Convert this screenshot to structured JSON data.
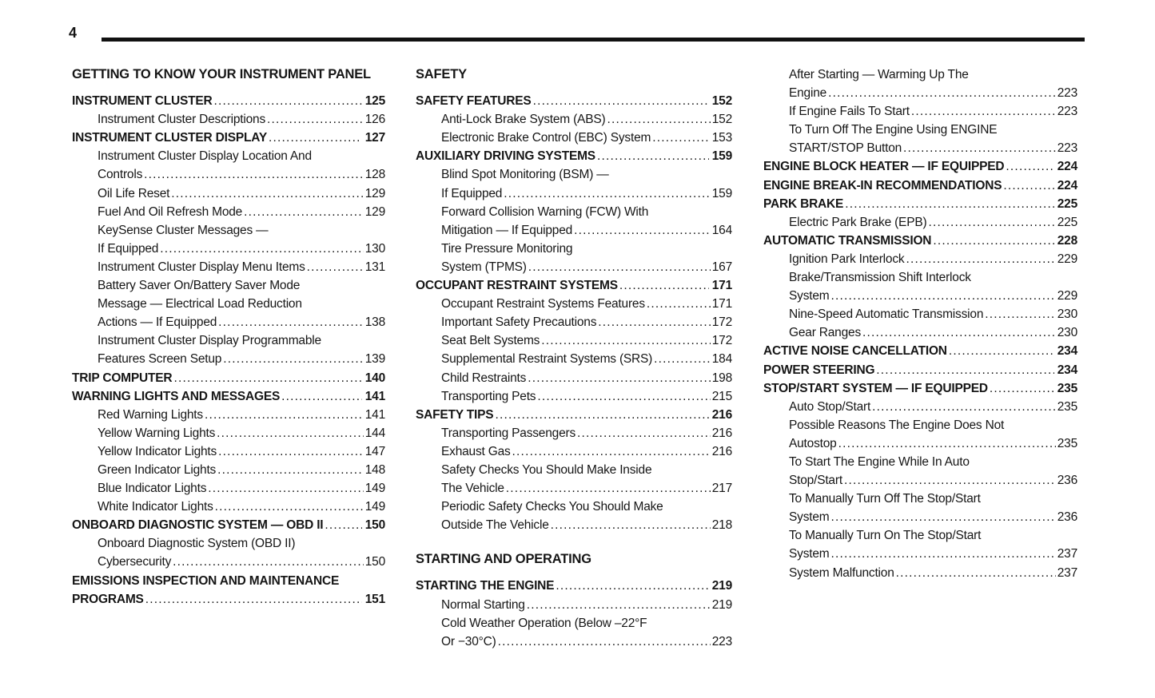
{
  "page": {
    "number": "4",
    "background": "#ffffff",
    "text_color": "#161616",
    "rule_color": "#111111"
  },
  "columns": [
    {
      "blocks": [
        {
          "type": "section",
          "text": "GETTING TO KNOW YOUR INSTRUMENT PANEL"
        },
        {
          "type": "entry",
          "level": 1,
          "lines": [
            "INSTRUMENT CLUSTER"
          ],
          "page": "125"
        },
        {
          "type": "entry",
          "level": 2,
          "lines": [
            "Instrument Cluster Descriptions"
          ],
          "page": "126"
        },
        {
          "type": "entry",
          "level": 1,
          "lines": [
            "INSTRUMENT CLUSTER DISPLAY"
          ],
          "page": "127"
        },
        {
          "type": "entry",
          "level": 2,
          "lines": [
            "Instrument Cluster Display Location And",
            "Controls"
          ],
          "page": "128"
        },
        {
          "type": "entry",
          "level": 2,
          "lines": [
            "Oil Life Reset"
          ],
          "page": "129"
        },
        {
          "type": "entry",
          "level": 2,
          "lines": [
            "Fuel And Oil Refresh Mode"
          ],
          "page": "129"
        },
        {
          "type": "entry",
          "level": 2,
          "lines": [
            "KeySense Cluster Messages —",
            "If Equipped"
          ],
          "page": "130"
        },
        {
          "type": "entry",
          "level": 2,
          "lines": [
            "Instrument Cluster Display Menu Items"
          ],
          "page": "131"
        },
        {
          "type": "entry",
          "level": 2,
          "lines": [
            "Battery Saver On/Battery Saver Mode",
            "Message — Electrical Load Reduction",
            "Actions — If Equipped"
          ],
          "page": "138"
        },
        {
          "type": "entry",
          "level": 2,
          "lines": [
            "Instrument Cluster Display Programmable",
            "Features Screen Setup"
          ],
          "page": "139"
        },
        {
          "type": "entry",
          "level": 1,
          "lines": [
            "TRIP COMPUTER"
          ],
          "page": "140"
        },
        {
          "type": "entry",
          "level": 1,
          "lines": [
            "WARNING LIGHTS AND MESSAGES"
          ],
          "page": "141"
        },
        {
          "type": "entry",
          "level": 2,
          "lines": [
            "Red Warning Lights"
          ],
          "page": "141"
        },
        {
          "type": "entry",
          "level": 2,
          "lines": [
            "Yellow Warning Lights"
          ],
          "page": "144"
        },
        {
          "type": "entry",
          "level": 2,
          "lines": [
            "Yellow Indicator Lights"
          ],
          "page": "147"
        },
        {
          "type": "entry",
          "level": 2,
          "lines": [
            "Green Indicator Lights"
          ],
          "page": "148"
        },
        {
          "type": "entry",
          "level": 2,
          "lines": [
            "Blue Indicator Lights"
          ],
          "page": "149"
        },
        {
          "type": "entry",
          "level": 2,
          "lines": [
            "White Indicator Lights"
          ],
          "page": "149"
        },
        {
          "type": "entry",
          "level": 1,
          "lines": [
            "ONBOARD DIAGNOSTIC SYSTEM — OBD II"
          ],
          "page": "150"
        },
        {
          "type": "entry",
          "level": 2,
          "lines": [
            "Onboard Diagnostic System (OBD II)",
            "Cybersecurity"
          ],
          "page": "150"
        },
        {
          "type": "entry",
          "level": 1,
          "lines": [
            "EMISSIONS INSPECTION AND MAINTENANCE",
            "PROGRAMS"
          ],
          "page": "151"
        }
      ]
    },
    {
      "blocks": [
        {
          "type": "section",
          "text": "SAFETY"
        },
        {
          "type": "entry",
          "level": 1,
          "lines": [
            "SAFETY FEATURES"
          ],
          "page": "152"
        },
        {
          "type": "entry",
          "level": 2,
          "lines": [
            "Anti-Lock Brake System (ABS)"
          ],
          "page": "152"
        },
        {
          "type": "entry",
          "level": 2,
          "lines": [
            "Electronic Brake Control (EBC) System"
          ],
          "page": "153"
        },
        {
          "type": "entry",
          "level": 1,
          "lines": [
            "AUXILIARY DRIVING SYSTEMS"
          ],
          "page": "159"
        },
        {
          "type": "entry",
          "level": 2,
          "lines": [
            "Blind Spot Monitoring (BSM) —",
            "If Equipped"
          ],
          "page": "159"
        },
        {
          "type": "entry",
          "level": 2,
          "lines": [
            "Forward Collision Warning (FCW) With",
            "Mitigation — If Equipped"
          ],
          "page": "164"
        },
        {
          "type": "entry",
          "level": 2,
          "lines": [
            "Tire Pressure Monitoring",
            "System (TPMS)"
          ],
          "page": "167"
        },
        {
          "type": "entry",
          "level": 1,
          "lines": [
            "OCCUPANT RESTRAINT SYSTEMS"
          ],
          "page": "171"
        },
        {
          "type": "entry",
          "level": 2,
          "lines": [
            "Occupant Restraint Systems Features"
          ],
          "page": "171"
        },
        {
          "type": "entry",
          "level": 2,
          "lines": [
            "Important Safety Precautions"
          ],
          "page": "172"
        },
        {
          "type": "entry",
          "level": 2,
          "lines": [
            "Seat Belt Systems"
          ],
          "page": "172"
        },
        {
          "type": "entry",
          "level": 2,
          "lines": [
            "Supplemental Restraint Systems (SRS)"
          ],
          "page": "184"
        },
        {
          "type": "entry",
          "level": 2,
          "lines": [
            "Child Restraints"
          ],
          "page": "198"
        },
        {
          "type": "entry",
          "level": 2,
          "lines": [
            "Transporting Pets"
          ],
          "page": "215"
        },
        {
          "type": "entry",
          "level": 1,
          "lines": [
            "SAFETY TIPS"
          ],
          "page": "216"
        },
        {
          "type": "entry",
          "level": 2,
          "lines": [
            "Transporting Passengers"
          ],
          "page": "216"
        },
        {
          "type": "entry",
          "level": 2,
          "lines": [
            "Exhaust Gas"
          ],
          "page": "216"
        },
        {
          "type": "entry",
          "level": 2,
          "lines": [
            "Safety Checks You Should Make Inside",
            "The Vehicle"
          ],
          "page": "217"
        },
        {
          "type": "entry",
          "level": 2,
          "lines": [
            "Periodic Safety Checks You Should Make",
            "Outside The Vehicle"
          ],
          "page": "218"
        },
        {
          "type": "section",
          "text": "STARTING AND OPERATING"
        },
        {
          "type": "entry",
          "level": 1,
          "lines": [
            "STARTING THE ENGINE"
          ],
          "page": "219"
        },
        {
          "type": "entry",
          "level": 2,
          "lines": [
            "Normal Starting"
          ],
          "page": "219"
        },
        {
          "type": "entry",
          "level": 2,
          "lines": [
            "Cold Weather Operation (Below –22°F",
            "Or −30°C)"
          ],
          "page": "223"
        }
      ]
    },
    {
      "blocks": [
        {
          "type": "entry",
          "level": 2,
          "lines": [
            "After Starting — Warming Up The",
            "Engine"
          ],
          "page": "223"
        },
        {
          "type": "entry",
          "level": 2,
          "lines": [
            "If Engine Fails To Start"
          ],
          "page": "223"
        },
        {
          "type": "entry",
          "level": 2,
          "lines": [
            "To Turn Off The Engine Using ENGINE",
            "START/STOP Button"
          ],
          "page": "223"
        },
        {
          "type": "entry",
          "level": 1,
          "lines": [
            "ENGINE BLOCK HEATER — IF EQUIPPED"
          ],
          "page": "224"
        },
        {
          "type": "entry",
          "level": 1,
          "lines": [
            "ENGINE BREAK-IN RECOMMENDATIONS"
          ],
          "page": "224"
        },
        {
          "type": "entry",
          "level": 1,
          "lines": [
            "PARK BRAKE"
          ],
          "page": "225"
        },
        {
          "type": "entry",
          "level": 2,
          "lines": [
            "Electric Park Brake (EPB)"
          ],
          "page": "225"
        },
        {
          "type": "entry",
          "level": 1,
          "lines": [
            "AUTOMATIC TRANSMISSION"
          ],
          "page": "228"
        },
        {
          "type": "entry",
          "level": 2,
          "lines": [
            "Ignition Park Interlock"
          ],
          "page": "229"
        },
        {
          "type": "entry",
          "level": 2,
          "lines": [
            "Brake/Transmission Shift Interlock",
            "System"
          ],
          "page": "229"
        },
        {
          "type": "entry",
          "level": 2,
          "lines": [
            "Nine-Speed Automatic Transmission"
          ],
          "page": "230"
        },
        {
          "type": "entry",
          "level": 2,
          "lines": [
            "Gear Ranges"
          ],
          "page": "230"
        },
        {
          "type": "entry",
          "level": 1,
          "lines": [
            "ACTIVE NOISE CANCELLATION"
          ],
          "page": "234"
        },
        {
          "type": "entry",
          "level": 1,
          "lines": [
            "POWER STEERING"
          ],
          "page": "234"
        },
        {
          "type": "entry",
          "level": 1,
          "lines": [
            "STOP/START SYSTEM — IF EQUIPPED"
          ],
          "page": "235"
        },
        {
          "type": "entry",
          "level": 2,
          "lines": [
            "Auto Stop/Start"
          ],
          "page": "235"
        },
        {
          "type": "entry",
          "level": 2,
          "lines": [
            "Possible Reasons The Engine Does Not",
            "Autostop"
          ],
          "page": "235"
        },
        {
          "type": "entry",
          "level": 2,
          "lines": [
            "To Start The Engine While In Auto",
            "Stop/Start"
          ],
          "page": "236"
        },
        {
          "type": "entry",
          "level": 2,
          "lines": [
            "To Manually Turn Off The Stop/Start",
            "System"
          ],
          "page": "236"
        },
        {
          "type": "entry",
          "level": 2,
          "lines": [
            "To Manually Turn On The Stop/Start",
            "System"
          ],
          "page": "237"
        },
        {
          "type": "entry",
          "level": 2,
          "lines": [
            "System Malfunction"
          ],
          "page": "237"
        }
      ]
    }
  ]
}
